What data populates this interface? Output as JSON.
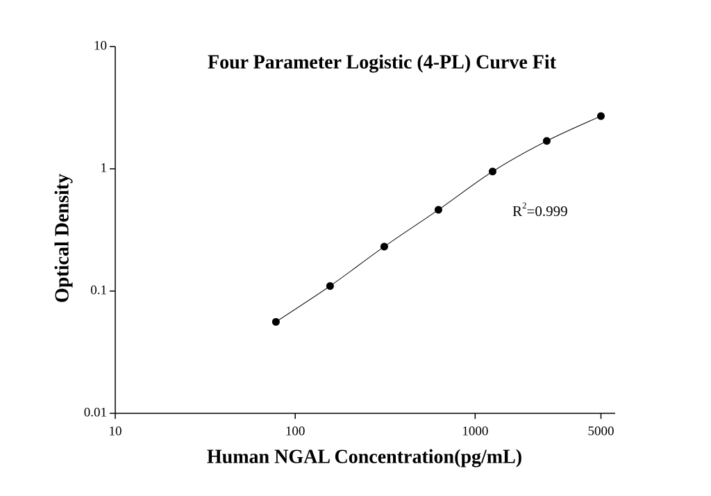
{
  "chart_data": {
    "type": "scatter",
    "title": "Four Parameter Logistic (4-PL) Curve Fit",
    "x_label": "Human NGAL Concentration(pg/mL)",
    "y_label": "Optical Density",
    "annotation": {
      "base": "R",
      "sup": "2",
      "rest": "=0.999"
    },
    "x": [
      78.125,
      156.25,
      312.5,
      625,
      1250,
      2500,
      5000
    ],
    "series": [
      {
        "color": "#000000",
        "values": [
          0.056,
          0.11,
          0.231,
          0.462,
          0.95,
          1.69,
          2.7
        ]
      }
    ],
    "xlim": [
      10,
      6000
    ],
    "ylim": [
      0.01,
      10
    ],
    "xticks": [
      10,
      100,
      1000,
      5000
    ],
    "yticks": [
      0.01,
      0.1,
      1,
      10
    ],
    "xscale": "log",
    "yscale": "log",
    "fit_line": true
  }
}
